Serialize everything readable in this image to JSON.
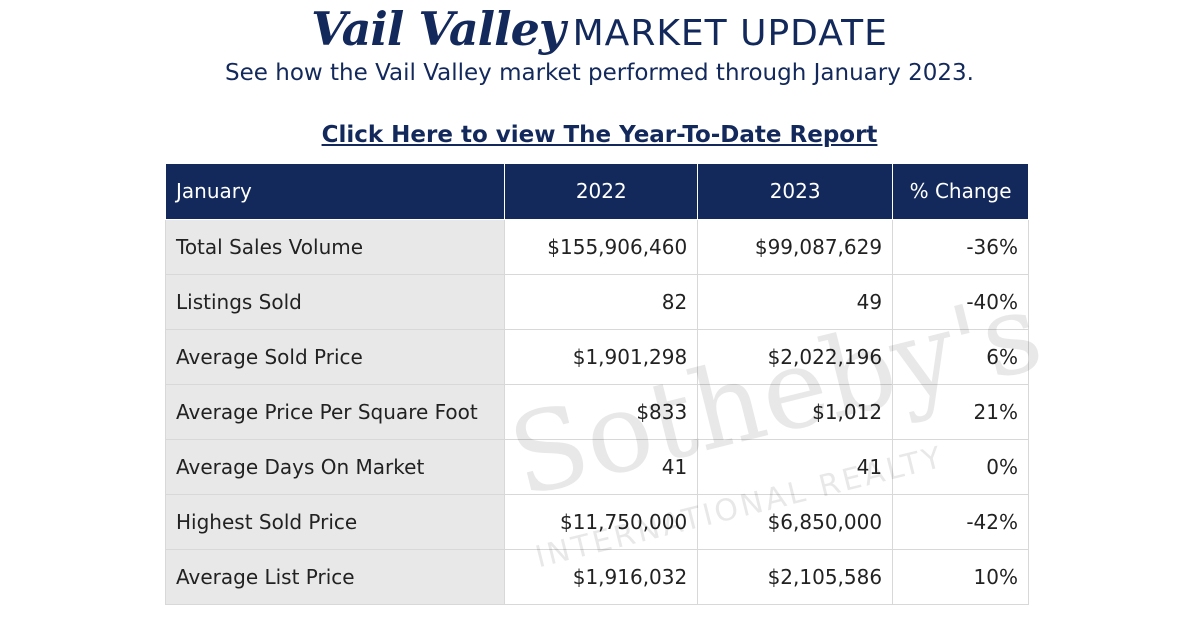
{
  "header": {
    "title_brand": "Vail Valley",
    "title_rest": "MARKET UPDATE",
    "subtitle": "See how the Vail Valley market performed through January 2023."
  },
  "link": "Click Here to view The Year-To-Date Report",
  "table": {
    "columns": [
      "January",
      "2022",
      "2023",
      "% Change"
    ],
    "rows": [
      [
        "Total Sales Volume",
        "$155,906,460",
        "$99,087,629",
        "-36%"
      ],
      [
        "Listings Sold",
        "82",
        "49",
        "-40%"
      ],
      [
        "Average Sold Price",
        "$1,901,298",
        "$2,022,196",
        "6%"
      ],
      [
        "Average Price Per Square Foot",
        "$833",
        "$1,012",
        "21%"
      ],
      [
        "Average Days On Market",
        "41",
        "41",
        "0%"
      ],
      [
        "Highest Sold Price",
        "$11,750,000",
        "$6,850,000",
        "-42%"
      ],
      [
        "Average List Price",
        "$1,916,032",
        "$2,105,586",
        "10%"
      ]
    ]
  },
  "watermark": {
    "brand": "Sotheby's",
    "tagline": "INTERNATIONAL REALTY"
  }
}
